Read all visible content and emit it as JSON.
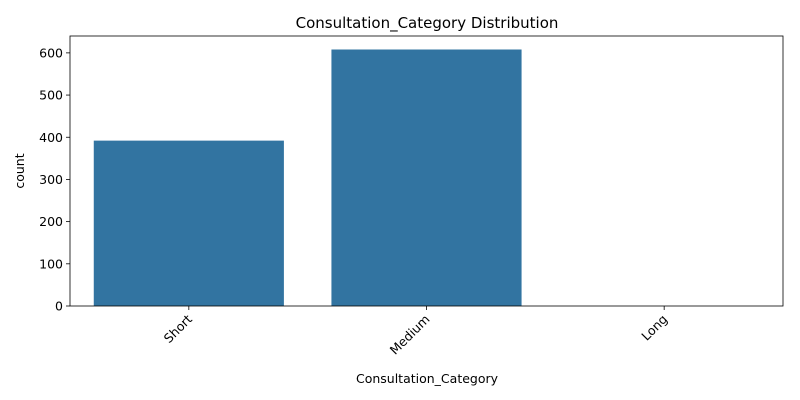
{
  "chart_data": {
    "type": "bar",
    "title": "Consultation_Category Distribution",
    "xlabel": "Consultation_Category",
    "ylabel": "count",
    "categories": [
      "Short",
      "Medium",
      "Long"
    ],
    "values": [
      392,
      608,
      0
    ],
    "ylim": [
      0,
      640
    ],
    "yticks": [
      0,
      100,
      200,
      300,
      400,
      500,
      600
    ],
    "bar_color": "#3274a1",
    "grid": false,
    "xtick_rotation_deg": 45
  }
}
